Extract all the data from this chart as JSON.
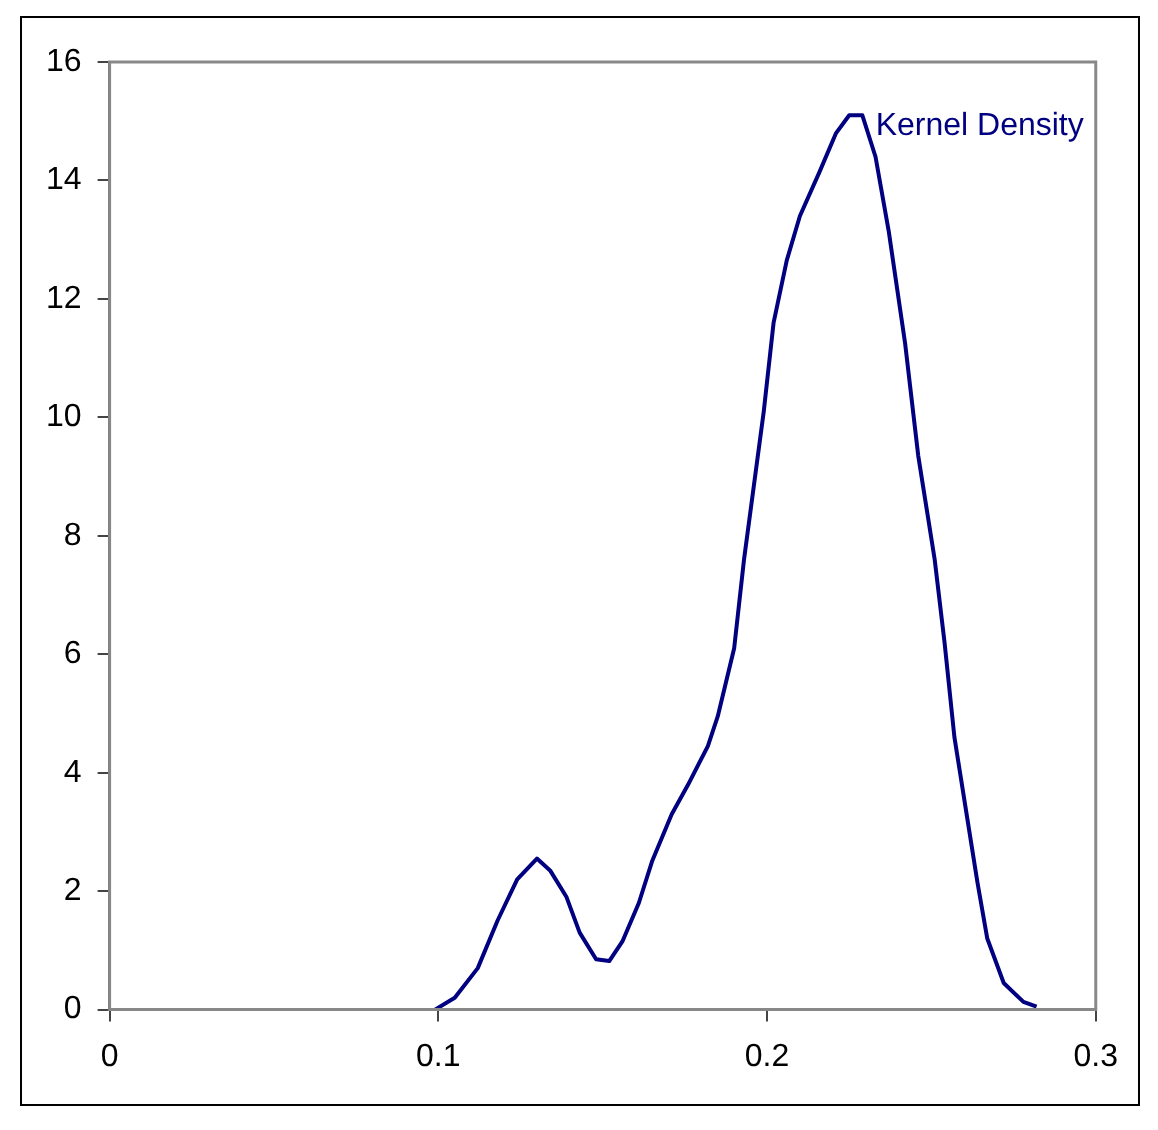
{
  "chart_data": {
    "type": "line",
    "series": [
      {
        "name": "Kernel Density",
        "color": "#000080",
        "x": [
          0.099,
          0.105,
          0.112,
          0.118,
          0.124,
          0.13,
          0.134,
          0.139,
          0.143,
          0.148,
          0.152,
          0.156,
          0.161,
          0.165,
          0.171,
          0.176,
          0.182,
          0.185,
          0.19,
          0.193,
          0.196,
          0.199,
          0.202,
          0.206,
          0.21,
          0.216,
          0.221,
          0.225,
          0.229,
          0.233,
          0.237,
          0.242,
          0.246,
          0.251,
          0.254,
          0.257,
          0.261,
          0.264,
          0.267,
          0.272,
          0.278,
          0.282
        ],
        "values": [
          0,
          0.2,
          0.7,
          1.5,
          2.2,
          2.55,
          2.35,
          1.9,
          1.3,
          0.85,
          0.82,
          1.15,
          1.8,
          2.5,
          3.3,
          3.8,
          4.45,
          4.95,
          6.1,
          7.6,
          8.85,
          10.1,
          11.6,
          12.65,
          13.4,
          14.15,
          14.8,
          15.1,
          15.1,
          14.4,
          13.15,
          11.25,
          9.35,
          7.6,
          6.2,
          4.6,
          3.2,
          2.15,
          1.2,
          0.45,
          0.13,
          0.05
        ]
      }
    ],
    "xlim": [
      0,
      0.3
    ],
    "xticks": [
      0,
      0.1,
      0.2,
      0.3
    ],
    "ylim": [
      0,
      16
    ],
    "yticks": [
      0,
      2,
      4,
      6,
      8,
      10,
      12,
      14,
      16
    ],
    "grid": false,
    "legend": false,
    "marker": "none",
    "line_style": "solid"
  }
}
